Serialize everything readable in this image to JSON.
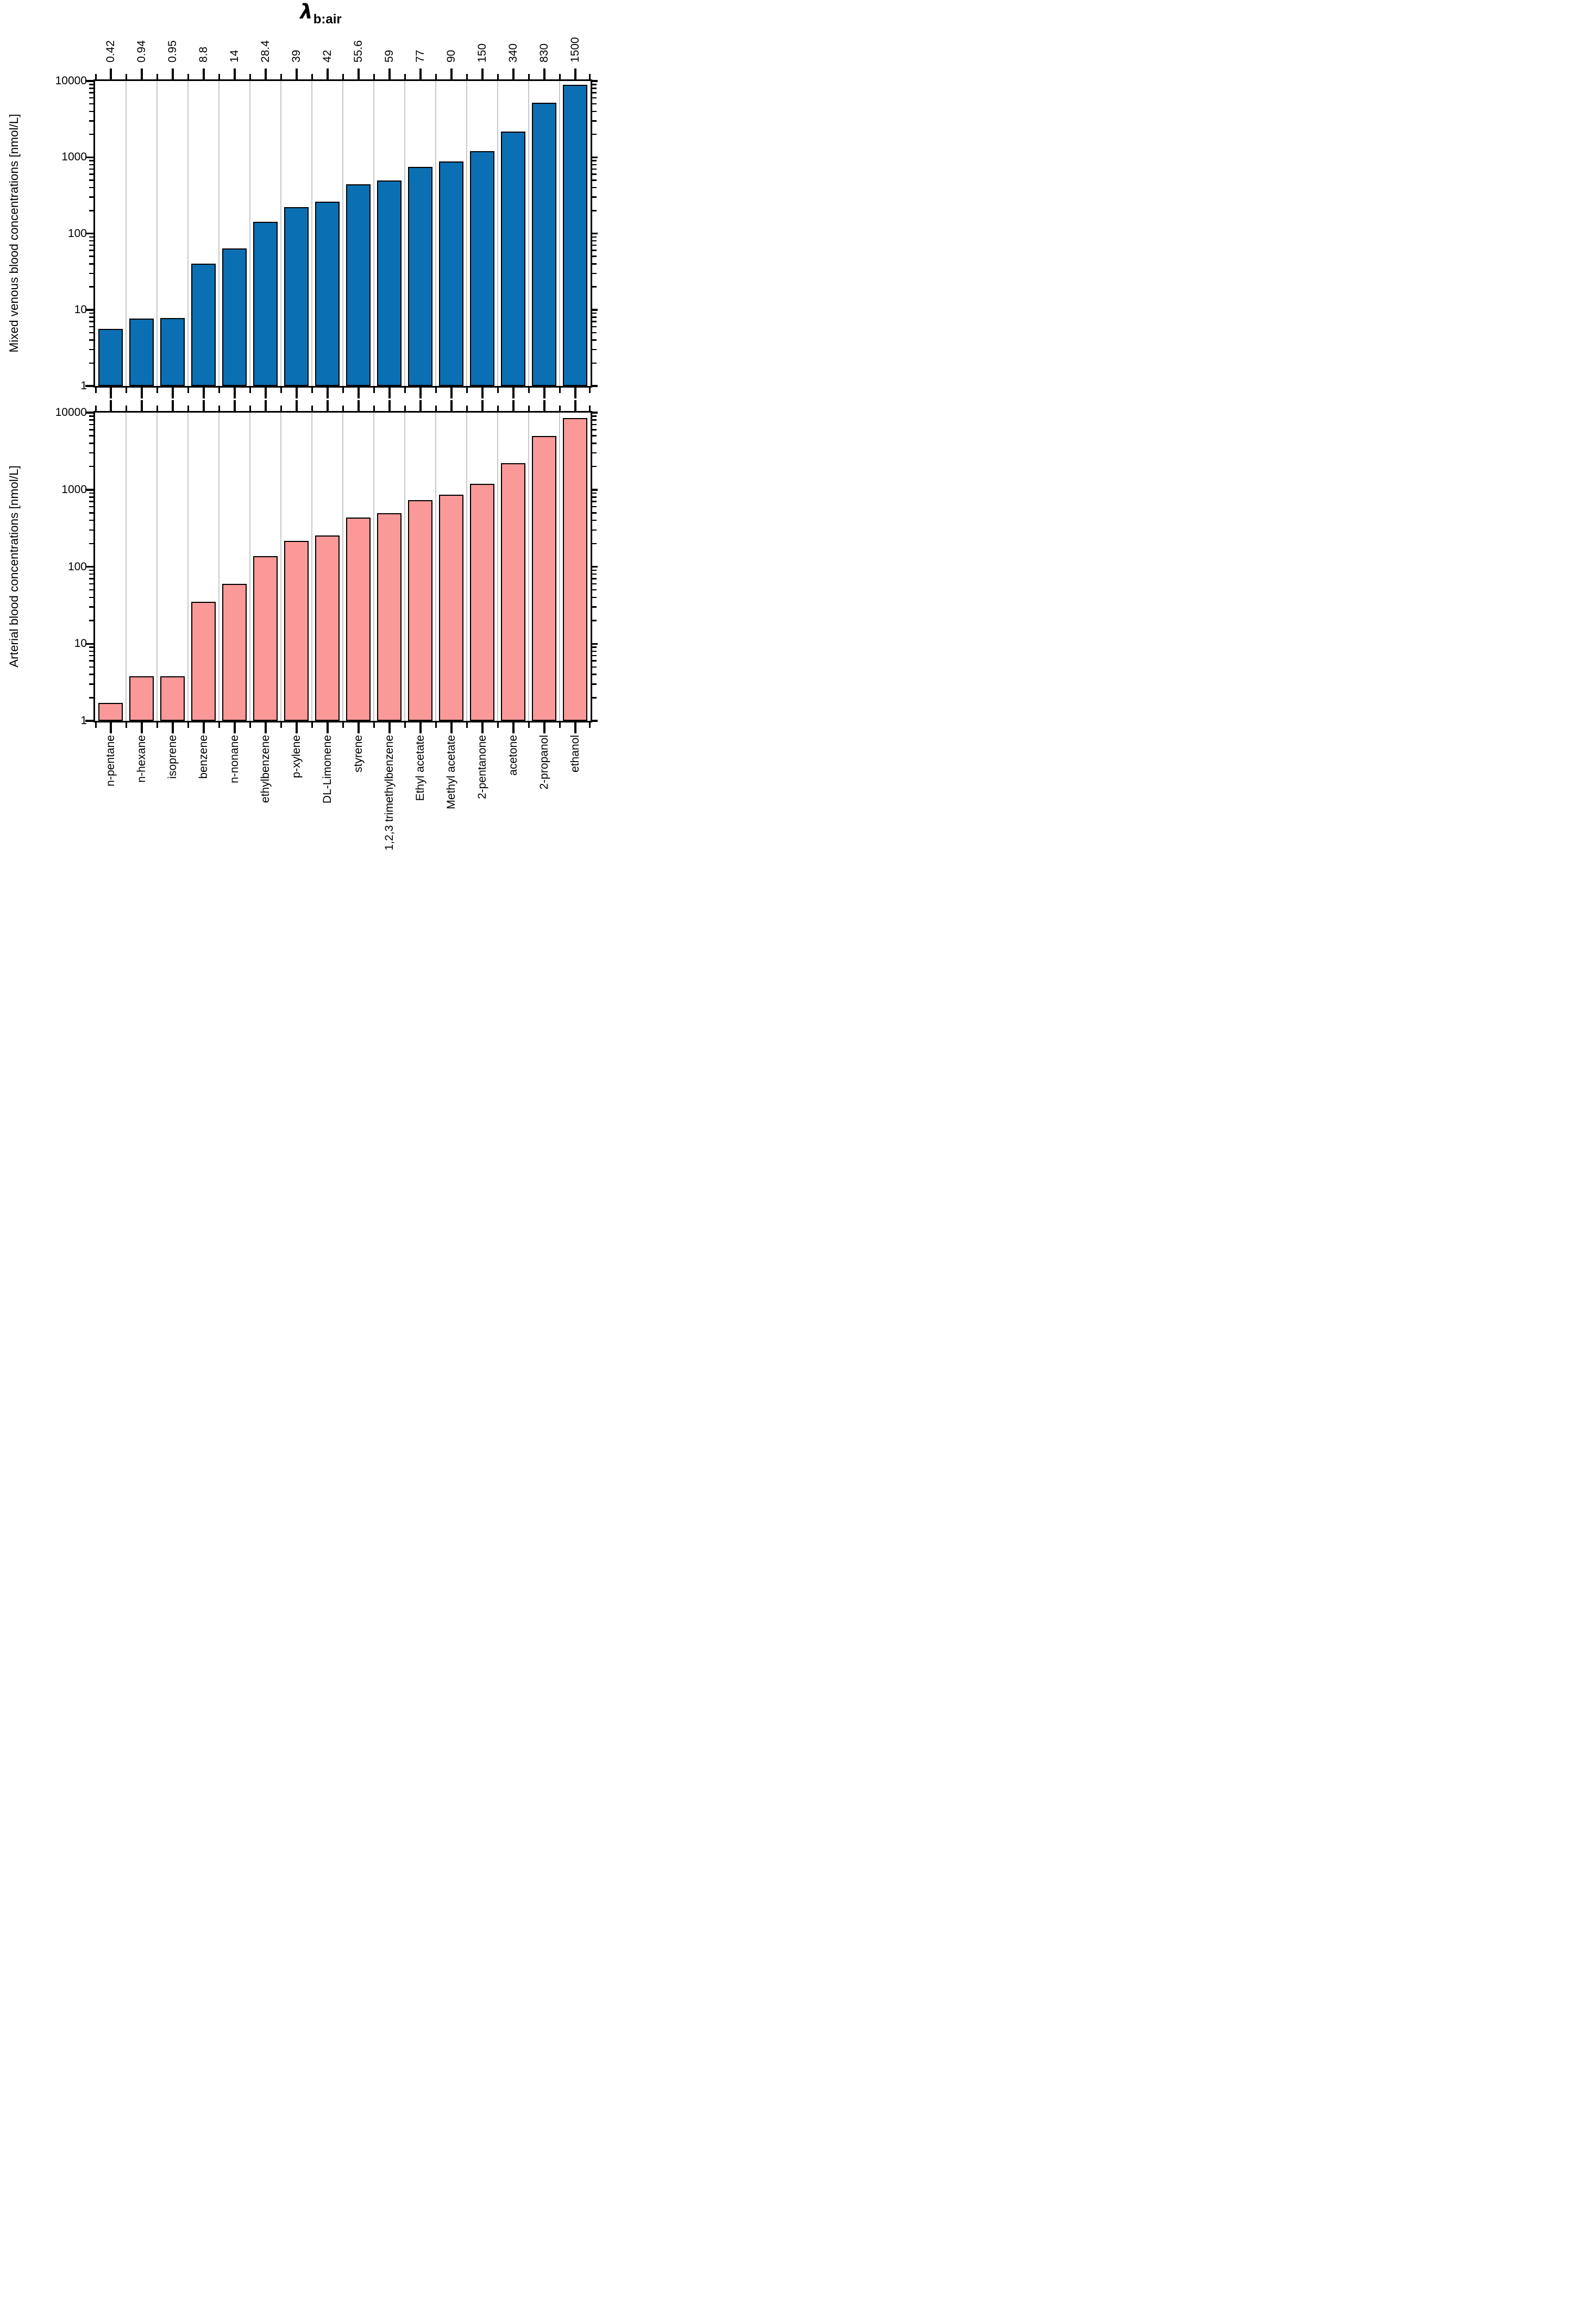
{
  "figure": {
    "top_axis_title": {
      "symbol": "λ",
      "subscript": "b:air"
    },
    "y_tick_labels": [
      "10000",
      "1000",
      "100",
      "10",
      "1"
    ]
  },
  "chart_data": [
    {
      "type": "bar",
      "panel": "top",
      "title": "λ b:air (secondary top axis)",
      "ylabel": "Mixed venous blood concentrations [nmol/L]",
      "xlabel": "",
      "scale": "log",
      "ylim": [
        1,
        10000
      ],
      "yticks": [
        1,
        10,
        100,
        1000,
        10000
      ],
      "grid": "light vertical gridlines at category boundaries",
      "legend": "none",
      "bar_color": "#0b70b3",
      "bar_edge_color": "#000000",
      "categories": [
        "n-pentane",
        "n-hexane",
        "isoprene",
        "benzene",
        "n-nonane",
        "ethylbenzene",
        "p-xylene",
        "DL-Limonene",
        "styrene",
        "1,2,3 trimethylbenzene",
        "Ethyl acetate",
        "Methyl acetate",
        "2-pentanone",
        "acetone",
        "2-propanol",
        "ethanol"
      ],
      "top_axis_labels": [
        "0.42",
        "0.94",
        "0.95",
        "8.8",
        "14",
        "28.4",
        "39",
        "42",
        "55.6",
        "59",
        "77",
        "90",
        "150",
        "340",
        "830",
        "1500"
      ],
      "values": [
        5.6,
        7.7,
        7.8,
        40,
        64,
        143,
        222,
        260,
        445,
        497,
        750,
        885,
        1210,
        2190,
        5200,
        8850
      ]
    },
    {
      "type": "bar",
      "panel": "bottom",
      "title": "",
      "ylabel": "Arterial blood concentrations [nmol/L]",
      "xlabel": "",
      "scale": "log",
      "ylim": [
        1,
        10000
      ],
      "yticks": [
        1,
        10,
        100,
        1000,
        10000
      ],
      "grid": "light vertical gridlines at category boundaries",
      "legend": "none",
      "bar_color": "#fb9999",
      "bar_edge_color": "#000000",
      "categories": [
        "n-pentane",
        "n-hexane",
        "isoprene",
        "benzene",
        "n-nonane",
        "ethylbenzene",
        "p-xylene",
        "DL-Limonene",
        "styrene",
        "1,2,3 trimethylbenzene",
        "Ethyl acetate",
        "Methyl acetate",
        "2-pentanone",
        "acetone",
        "2-propanol",
        "ethanol"
      ],
      "values": [
        1.7,
        3.8,
        3.8,
        35,
        60,
        138,
        218,
        255,
        437,
        496,
        734,
        864,
        1190,
        2210,
        5000,
        8550
      ]
    }
  ]
}
